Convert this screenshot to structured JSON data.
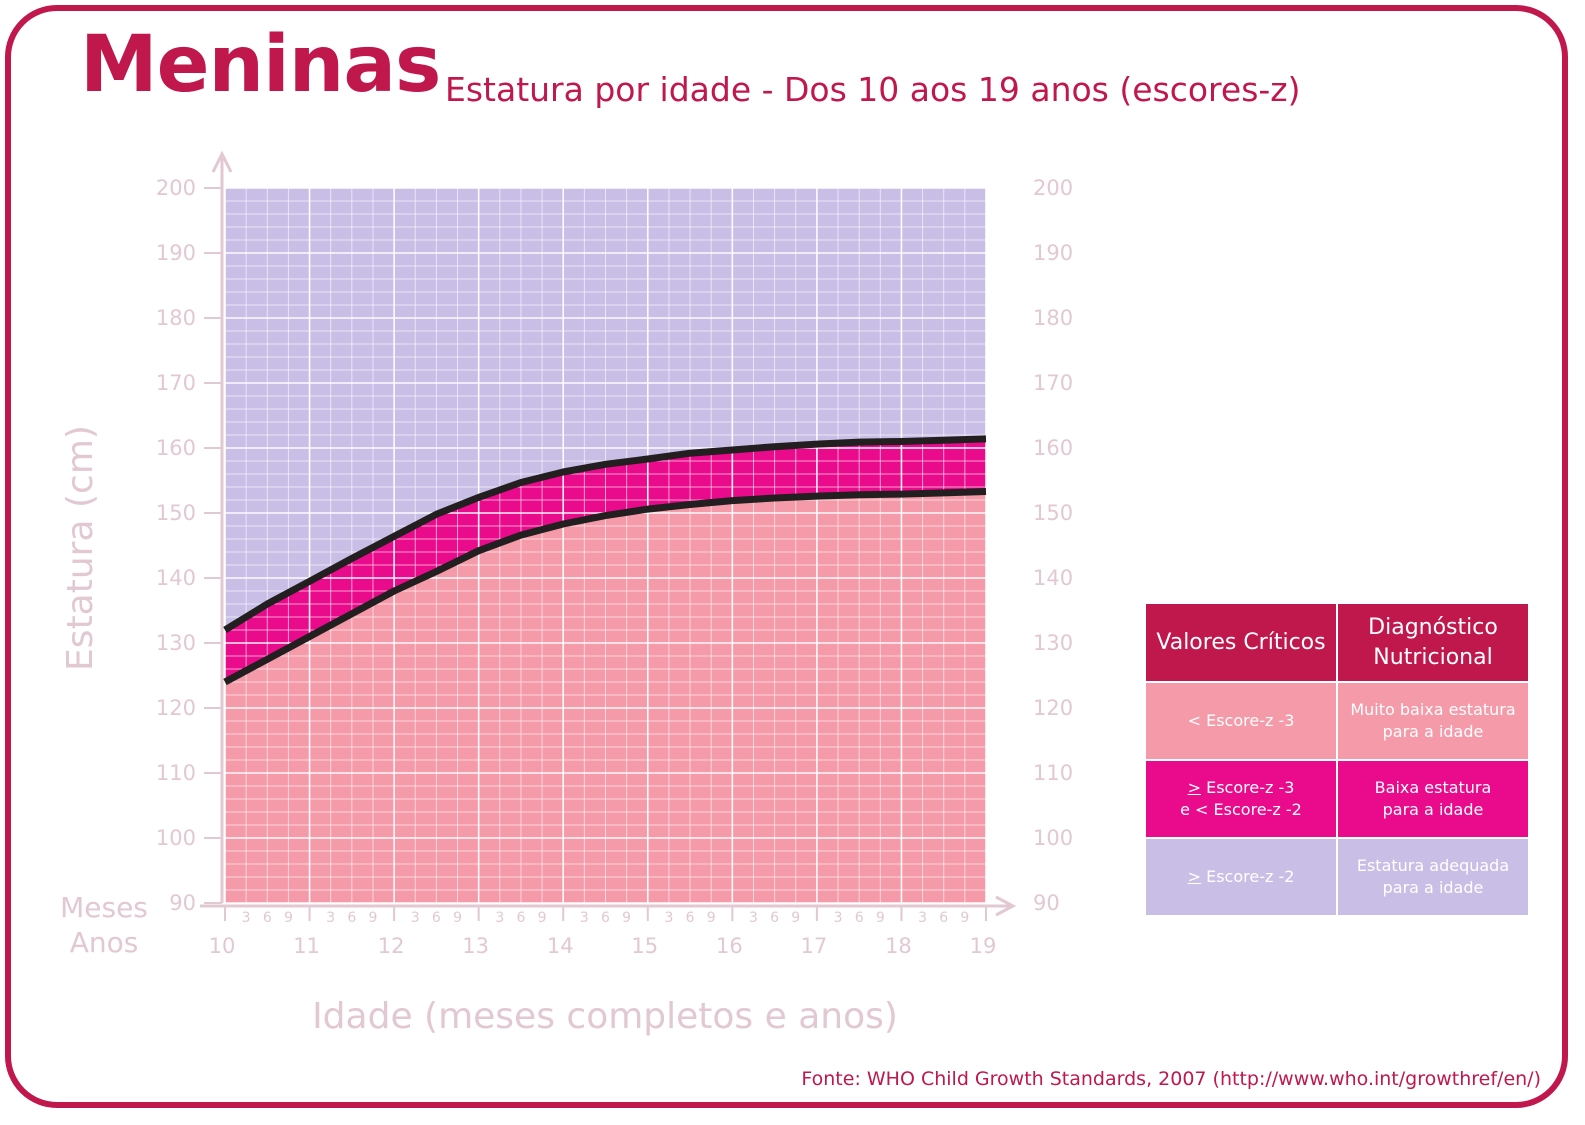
{
  "header": {
    "title": "Meninas",
    "subtitle": "Estatura por idade - Dos 10 aos 19 anos (escores-z)"
  },
  "chart_data": {
    "type": "area",
    "title": "Estatura por idade - Dos 10 aos 19 anos (escores-z)",
    "xlabel": "Idade (meses completos e anos)",
    "ylabel": "Estatura (cm)",
    "xlim": [
      10,
      19
    ],
    "ylim": [
      90,
      200
    ],
    "x_ticks": [
      "10",
      "11",
      "12",
      "13",
      "14",
      "15",
      "16",
      "17",
      "18",
      "19"
    ],
    "month_ticks": [
      "3",
      "6",
      "9"
    ],
    "y_ticks": [
      "200",
      "190",
      "180",
      "170",
      "160",
      "150",
      "140",
      "130",
      "120",
      "110",
      "100",
      "90"
    ],
    "months_label": "Meses",
    "years_label": "Anos",
    "grid": true,
    "colors": {
      "below_minus3": "#f59aa8",
      "between_minus3_minus2": "#ea0a8c",
      "above_minus2": "#c8bee6",
      "curve": "#231f20",
      "axis_text": "#e2c8d3",
      "brand": "#c0174c"
    },
    "series": [
      {
        "name": "Escore-z -3",
        "x": [
          10,
          10.5,
          11,
          11.5,
          12,
          12.5,
          13,
          13.5,
          14,
          14.5,
          15,
          15.5,
          16,
          16.5,
          17,
          17.5,
          18,
          18.5,
          19
        ],
        "values": [
          124,
          127.5,
          131,
          134.5,
          138,
          141,
          144.2,
          146.6,
          148.3,
          149.6,
          150.6,
          151.3,
          151.9,
          152.3,
          152.6,
          152.8,
          152.9,
          153.1,
          153.3
        ]
      },
      {
        "name": "Escore-z -2",
        "x": [
          10,
          10.5,
          11,
          11.5,
          12,
          12.5,
          13,
          13.5,
          14,
          14.5,
          15,
          15.5,
          16,
          16.5,
          17,
          17.5,
          18,
          18.5,
          19
        ],
        "values": [
          132,
          136,
          139.5,
          143,
          146.4,
          149.8,
          152.4,
          154.7,
          156.3,
          157.5,
          158.3,
          159.2,
          159.7,
          160.2,
          160.6,
          160.9,
          161.0,
          161.2,
          161.4
        ]
      }
    ]
  },
  "legend_table": {
    "headers": [
      "Valores Críticos",
      "Diagnóstico Nutricional"
    ],
    "rows": [
      {
        "critical_prefix": "",
        "critical_rest": "< Escore-z -3",
        "critical_line2": "",
        "diagnosis_line1": "Muito baixa estatura",
        "diagnosis_line2": "para a idade"
      },
      {
        "critical_prefix": ">",
        "critical_rest": " Escore-z -3",
        "critical_line2": "e < Escore-z -2",
        "diagnosis_line1": "Baixa estatura",
        "diagnosis_line2": "para a idade"
      },
      {
        "critical_prefix": ">",
        "critical_rest": " Escore-z -2",
        "critical_line2": "",
        "diagnosis_line1": "Estatura adequada",
        "diagnosis_line2": "para a idade"
      }
    ]
  },
  "source": "Fonte: WHO Child Growth Standards, 2007 (http://www.who.int/growthref/en/)"
}
